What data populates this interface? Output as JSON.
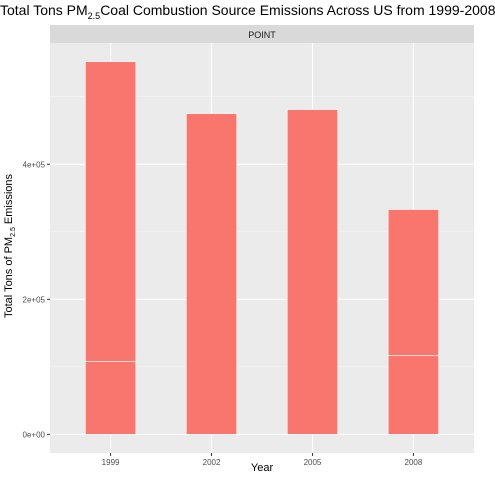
{
  "title": {
    "prefix": "Total Tons PM",
    "subscript": "2.5",
    "suffix": "Coal Combustion Source Emissions Across US from 1999-2008"
  },
  "colors": {
    "bar": "#F8766D",
    "panel_bg": "#EBEBEB",
    "strip_bg": "#D9D9D9",
    "grid_major": "#FFFFFF",
    "tick_text": "#4D4D4D"
  },
  "chart_data": {
    "type": "bar",
    "facet": "POINT",
    "categories": [
      "1999",
      "2002",
      "2005",
      "2008"
    ],
    "stacked_segments": [
      [
        108000,
        444000
      ],
      [
        475000
      ],
      [
        481000
      ],
      [
        117000,
        216000
      ]
    ],
    "totals": [
      552000,
      475000,
      481000,
      333000
    ],
    "xlabel": "Year",
    "ylabel": {
      "prefix": "Total Tons of PM",
      "subscript": "2.5",
      "suffix": " Emissions"
    },
    "yticks": [
      0,
      200000,
      400000
    ],
    "ytick_labels": [
      "0e+00",
      "2e+05",
      "4e+05"
    ],
    "ylim": [
      -27600,
      579600
    ],
    "grid": true,
    "legend": "none"
  }
}
